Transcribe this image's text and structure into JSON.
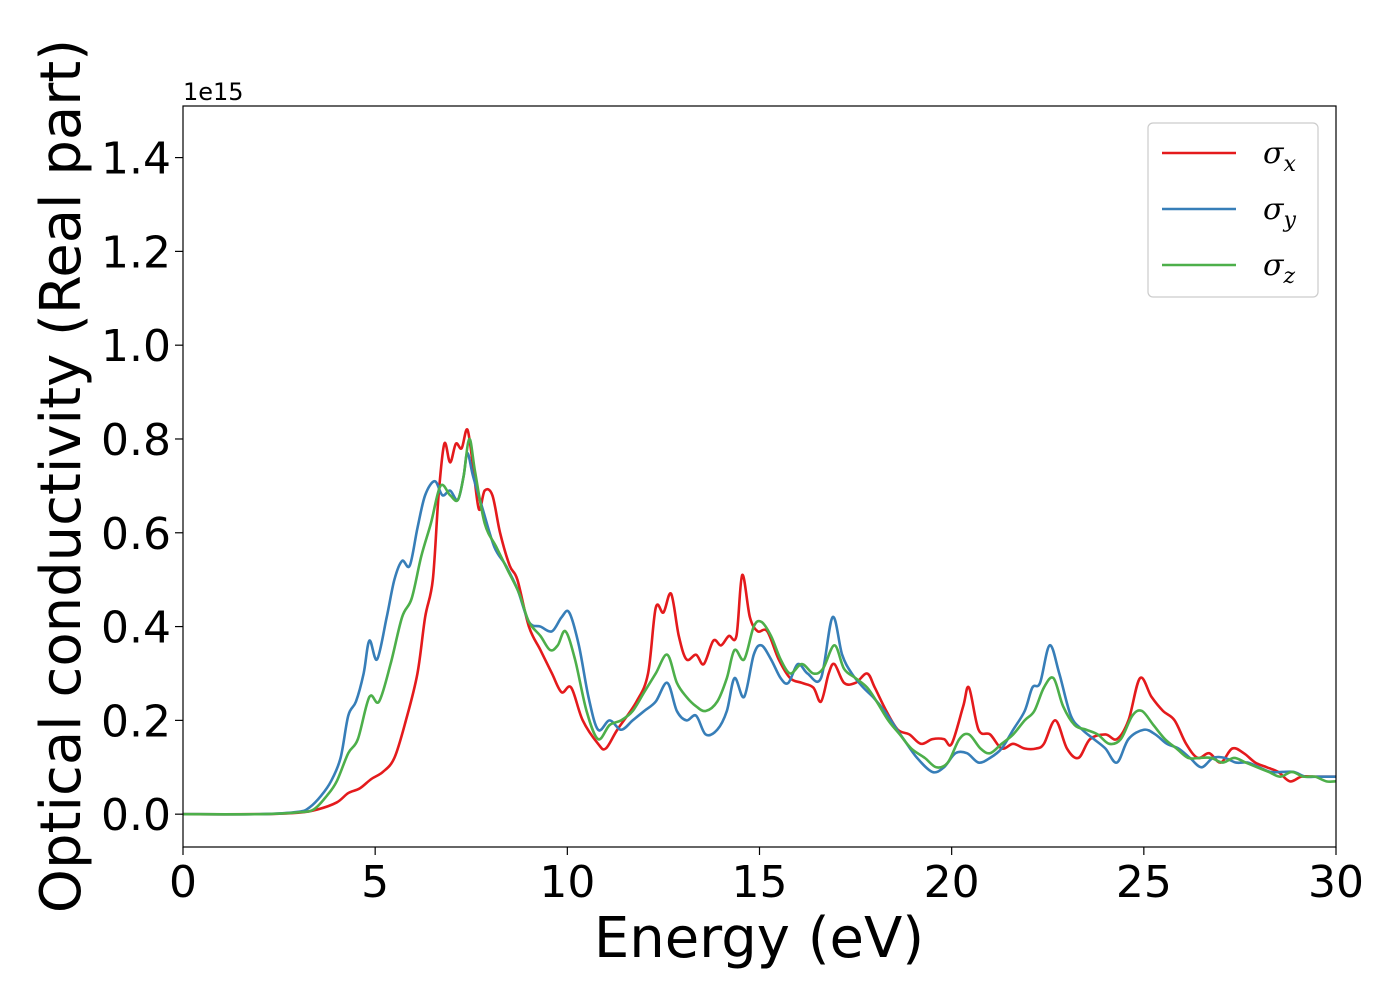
{
  "chart_data": {
    "type": "line",
    "xlabel": "Energy (eV)",
    "ylabel": "Optical conductivity (Real part)",
    "y_offset_text": "1e15",
    "xlim": [
      0,
      30
    ],
    "ylim": [
      -0.07,
      1.51
    ],
    "y_scale_factor": 1000000000000000.0,
    "x_ticks": [
      0,
      5,
      10,
      15,
      20,
      25,
      30
    ],
    "x_tick_labels": [
      "0",
      "5",
      "10",
      "15",
      "20",
      "25",
      "30"
    ],
    "y_ticks": [
      0.0,
      0.2,
      0.4,
      0.6,
      0.8,
      1.0,
      1.2,
      1.4
    ],
    "y_tick_labels": [
      "0.0",
      "0.2",
      "0.4",
      "0.6",
      "0.8",
      "1.0",
      "1.2",
      "1.4"
    ],
    "grid": false,
    "legend_position": "top-right",
    "series": [
      {
        "name": "σ_x",
        "legend_symbol": "σ",
        "legend_sub": "x",
        "color": "#e41a1c",
        "points": [
          [
            0,
            0.0
          ],
          [
            2,
            0.0
          ],
          [
            3,
            0.003
          ],
          [
            3.5,
            0.01
          ],
          [
            4,
            0.025
          ],
          [
            4.3,
            0.045
          ],
          [
            4.6,
            0.055
          ],
          [
            4.9,
            0.075
          ],
          [
            5.2,
            0.09
          ],
          [
            5.5,
            0.12
          ],
          [
            5.8,
            0.2
          ],
          [
            6.1,
            0.3
          ],
          [
            6.3,
            0.42
          ],
          [
            6.5,
            0.5
          ],
          [
            6.65,
            0.68
          ],
          [
            6.8,
            0.79
          ],
          [
            6.95,
            0.75
          ],
          [
            7.1,
            0.79
          ],
          [
            7.25,
            0.78
          ],
          [
            7.4,
            0.82
          ],
          [
            7.55,
            0.74
          ],
          [
            7.7,
            0.65
          ],
          [
            7.85,
            0.69
          ],
          [
            8.05,
            0.68
          ],
          [
            8.25,
            0.6
          ],
          [
            8.5,
            0.53
          ],
          [
            8.7,
            0.5
          ],
          [
            9.0,
            0.4
          ],
          [
            9.3,
            0.35
          ],
          [
            9.6,
            0.3
          ],
          [
            9.85,
            0.26
          ],
          [
            10.1,
            0.27
          ],
          [
            10.4,
            0.2
          ],
          [
            10.8,
            0.15
          ],
          [
            11.0,
            0.14
          ],
          [
            11.3,
            0.18
          ],
          [
            11.8,
            0.24
          ],
          [
            12.1,
            0.3
          ],
          [
            12.3,
            0.44
          ],
          [
            12.5,
            0.43
          ],
          [
            12.7,
            0.47
          ],
          [
            12.9,
            0.38
          ],
          [
            13.1,
            0.33
          ],
          [
            13.35,
            0.34
          ],
          [
            13.55,
            0.32
          ],
          [
            13.8,
            0.37
          ],
          [
            14.0,
            0.36
          ],
          [
            14.2,
            0.38
          ],
          [
            14.4,
            0.38
          ],
          [
            14.55,
            0.51
          ],
          [
            14.75,
            0.42
          ],
          [
            14.95,
            0.39
          ],
          [
            15.2,
            0.39
          ],
          [
            15.5,
            0.33
          ],
          [
            15.8,
            0.29
          ],
          [
            16.1,
            0.28
          ],
          [
            16.4,
            0.27
          ],
          [
            16.6,
            0.24
          ],
          [
            16.8,
            0.3
          ],
          [
            16.95,
            0.32
          ],
          [
            17.2,
            0.28
          ],
          [
            17.5,
            0.28
          ],
          [
            17.8,
            0.3
          ],
          [
            18.0,
            0.27
          ],
          [
            18.3,
            0.22
          ],
          [
            18.6,
            0.18
          ],
          [
            18.9,
            0.17
          ],
          [
            19.2,
            0.15
          ],
          [
            19.5,
            0.16
          ],
          [
            19.8,
            0.16
          ],
          [
            20.0,
            0.15
          ],
          [
            20.3,
            0.23
          ],
          [
            20.45,
            0.27
          ],
          [
            20.7,
            0.18
          ],
          [
            21.0,
            0.17
          ],
          [
            21.3,
            0.14
          ],
          [
            21.6,
            0.15
          ],
          [
            21.9,
            0.14
          ],
          [
            22.2,
            0.14
          ],
          [
            22.4,
            0.15
          ],
          [
            22.7,
            0.2
          ],
          [
            23.0,
            0.14
          ],
          [
            23.3,
            0.12
          ],
          [
            23.6,
            0.16
          ],
          [
            24.0,
            0.17
          ],
          [
            24.3,
            0.16
          ],
          [
            24.6,
            0.2
          ],
          [
            24.9,
            0.29
          ],
          [
            25.2,
            0.25
          ],
          [
            25.5,
            0.22
          ],
          [
            25.8,
            0.2
          ],
          [
            26.1,
            0.15
          ],
          [
            26.4,
            0.12
          ],
          [
            26.7,
            0.13
          ],
          [
            27.0,
            0.11
          ],
          [
            27.3,
            0.14
          ],
          [
            27.6,
            0.13
          ],
          [
            27.9,
            0.11
          ],
          [
            28.2,
            0.1
          ],
          [
            28.5,
            0.09
          ],
          [
            28.8,
            0.07
          ],
          [
            29.1,
            0.08
          ],
          [
            29.4,
            0.08
          ],
          [
            29.7,
            0.08
          ],
          [
            30.0,
            0.08
          ]
        ]
      },
      {
        "name": "σ_y",
        "legend_symbol": "σ",
        "legend_sub": "y",
        "color": "#377eb8",
        "points": [
          [
            0,
            0.0
          ],
          [
            2,
            0.0
          ],
          [
            3,
            0.005
          ],
          [
            3.3,
            0.015
          ],
          [
            3.6,
            0.04
          ],
          [
            3.85,
            0.07
          ],
          [
            4.1,
            0.12
          ],
          [
            4.3,
            0.21
          ],
          [
            4.5,
            0.24
          ],
          [
            4.7,
            0.3
          ],
          [
            4.85,
            0.37
          ],
          [
            5.05,
            0.33
          ],
          [
            5.3,
            0.42
          ],
          [
            5.5,
            0.5
          ],
          [
            5.7,
            0.54
          ],
          [
            5.9,
            0.53
          ],
          [
            6.1,
            0.61
          ],
          [
            6.3,
            0.68
          ],
          [
            6.55,
            0.71
          ],
          [
            6.75,
            0.68
          ],
          [
            6.95,
            0.69
          ],
          [
            7.15,
            0.67
          ],
          [
            7.3,
            0.72
          ],
          [
            7.4,
            0.77
          ],
          [
            7.55,
            0.72
          ],
          [
            7.8,
            0.65
          ],
          [
            8.1,
            0.57
          ],
          [
            8.4,
            0.53
          ],
          [
            8.7,
            0.48
          ],
          [
            9.0,
            0.41
          ],
          [
            9.3,
            0.4
          ],
          [
            9.6,
            0.39
          ],
          [
            9.85,
            0.42
          ],
          [
            10.05,
            0.43
          ],
          [
            10.3,
            0.36
          ],
          [
            10.55,
            0.25
          ],
          [
            10.8,
            0.18
          ],
          [
            11.1,
            0.2
          ],
          [
            11.4,
            0.18
          ],
          [
            11.7,
            0.2
          ],
          [
            12.0,
            0.22
          ],
          [
            12.3,
            0.24
          ],
          [
            12.6,
            0.28
          ],
          [
            12.85,
            0.22
          ],
          [
            13.1,
            0.2
          ],
          [
            13.35,
            0.21
          ],
          [
            13.6,
            0.17
          ],
          [
            13.9,
            0.18
          ],
          [
            14.15,
            0.22
          ],
          [
            14.35,
            0.29
          ],
          [
            14.6,
            0.25
          ],
          [
            14.85,
            0.34
          ],
          [
            15.05,
            0.36
          ],
          [
            15.3,
            0.33
          ],
          [
            15.55,
            0.29
          ],
          [
            15.75,
            0.28
          ],
          [
            16.0,
            0.32
          ],
          [
            16.25,
            0.3
          ],
          [
            16.6,
            0.29
          ],
          [
            16.9,
            0.42
          ],
          [
            17.15,
            0.34
          ],
          [
            17.4,
            0.3
          ],
          [
            17.7,
            0.27
          ],
          [
            17.95,
            0.25
          ],
          [
            18.25,
            0.22
          ],
          [
            18.5,
            0.19
          ],
          [
            18.75,
            0.16
          ],
          [
            19.1,
            0.12
          ],
          [
            19.5,
            0.09
          ],
          [
            19.8,
            0.1
          ],
          [
            20.1,
            0.13
          ],
          [
            20.4,
            0.13
          ],
          [
            20.7,
            0.11
          ],
          [
            21.0,
            0.12
          ],
          [
            21.3,
            0.14
          ],
          [
            21.6,
            0.18
          ],
          [
            21.9,
            0.22
          ],
          [
            22.1,
            0.27
          ],
          [
            22.3,
            0.28
          ],
          [
            22.55,
            0.36
          ],
          [
            22.8,
            0.3
          ],
          [
            23.1,
            0.21
          ],
          [
            23.4,
            0.18
          ],
          [
            23.7,
            0.16
          ],
          [
            24.0,
            0.14
          ],
          [
            24.3,
            0.11
          ],
          [
            24.6,
            0.16
          ],
          [
            25.0,
            0.18
          ],
          [
            25.3,
            0.17
          ],
          [
            25.6,
            0.15
          ],
          [
            25.9,
            0.14
          ],
          [
            26.2,
            0.12
          ],
          [
            26.5,
            0.1
          ],
          [
            26.8,
            0.12
          ],
          [
            27.1,
            0.12
          ],
          [
            27.4,
            0.11
          ],
          [
            27.7,
            0.11
          ],
          [
            28.0,
            0.1
          ],
          [
            28.3,
            0.09
          ],
          [
            28.6,
            0.09
          ],
          [
            28.9,
            0.09
          ],
          [
            29.2,
            0.08
          ],
          [
            29.5,
            0.08
          ],
          [
            29.8,
            0.08
          ],
          [
            30.0,
            0.08
          ]
        ]
      },
      {
        "name": "σ_z",
        "legend_symbol": "σ",
        "legend_sub": "z",
        "color": "#4daf4a",
        "points": [
          [
            0,
            0.0
          ],
          [
            2,
            0.0
          ],
          [
            3,
            0.004
          ],
          [
            3.4,
            0.01
          ],
          [
            3.75,
            0.04
          ],
          [
            4.0,
            0.07
          ],
          [
            4.3,
            0.13
          ],
          [
            4.55,
            0.16
          ],
          [
            4.85,
            0.25
          ],
          [
            5.1,
            0.24
          ],
          [
            5.4,
            0.32
          ],
          [
            5.7,
            0.42
          ],
          [
            5.95,
            0.46
          ],
          [
            6.2,
            0.55
          ],
          [
            6.45,
            0.62
          ],
          [
            6.7,
            0.7
          ],
          [
            6.95,
            0.68
          ],
          [
            7.15,
            0.67
          ],
          [
            7.3,
            0.72
          ],
          [
            7.45,
            0.8
          ],
          [
            7.6,
            0.73
          ],
          [
            7.85,
            0.62
          ],
          [
            8.15,
            0.57
          ],
          [
            8.45,
            0.52
          ],
          [
            8.75,
            0.47
          ],
          [
            9.0,
            0.41
          ],
          [
            9.3,
            0.38
          ],
          [
            9.55,
            0.35
          ],
          [
            9.75,
            0.36
          ],
          [
            9.95,
            0.39
          ],
          [
            10.2,
            0.33
          ],
          [
            10.5,
            0.22
          ],
          [
            10.8,
            0.16
          ],
          [
            11.1,
            0.19
          ],
          [
            11.4,
            0.2
          ],
          [
            11.7,
            0.22
          ],
          [
            12.0,
            0.26
          ],
          [
            12.3,
            0.3
          ],
          [
            12.6,
            0.34
          ],
          [
            12.85,
            0.28
          ],
          [
            13.1,
            0.25
          ],
          [
            13.35,
            0.23
          ],
          [
            13.6,
            0.22
          ],
          [
            13.9,
            0.24
          ],
          [
            14.15,
            0.29
          ],
          [
            14.35,
            0.35
          ],
          [
            14.6,
            0.33
          ],
          [
            14.85,
            0.4
          ],
          [
            15.05,
            0.41
          ],
          [
            15.3,
            0.38
          ],
          [
            15.55,
            0.33
          ],
          [
            15.8,
            0.3
          ],
          [
            16.1,
            0.32
          ],
          [
            16.4,
            0.3
          ],
          [
            16.65,
            0.31
          ],
          [
            16.95,
            0.36
          ],
          [
            17.2,
            0.31
          ],
          [
            17.5,
            0.29
          ],
          [
            17.8,
            0.27
          ],
          [
            18.05,
            0.24
          ],
          [
            18.35,
            0.2
          ],
          [
            18.65,
            0.17
          ],
          [
            18.95,
            0.14
          ],
          [
            19.3,
            0.12
          ],
          [
            19.6,
            0.1
          ],
          [
            19.9,
            0.11
          ],
          [
            20.2,
            0.16
          ],
          [
            20.45,
            0.17
          ],
          [
            20.75,
            0.14
          ],
          [
            21.0,
            0.13
          ],
          [
            21.3,
            0.15
          ],
          [
            21.6,
            0.17
          ],
          [
            21.9,
            0.2
          ],
          [
            22.15,
            0.22
          ],
          [
            22.4,
            0.27
          ],
          [
            22.65,
            0.29
          ],
          [
            22.9,
            0.23
          ],
          [
            23.2,
            0.19
          ],
          [
            23.5,
            0.18
          ],
          [
            23.8,
            0.17
          ],
          [
            24.1,
            0.15
          ],
          [
            24.4,
            0.16
          ],
          [
            24.7,
            0.21
          ],
          [
            24.95,
            0.22
          ],
          [
            25.25,
            0.19
          ],
          [
            25.55,
            0.16
          ],
          [
            25.85,
            0.14
          ],
          [
            26.15,
            0.12
          ],
          [
            26.45,
            0.12
          ],
          [
            26.75,
            0.12
          ],
          [
            27.05,
            0.11
          ],
          [
            27.35,
            0.12
          ],
          [
            27.65,
            0.11
          ],
          [
            27.95,
            0.1
          ],
          [
            28.25,
            0.09
          ],
          [
            28.55,
            0.08
          ],
          [
            28.85,
            0.09
          ],
          [
            29.15,
            0.08
          ],
          [
            29.45,
            0.08
          ],
          [
            29.75,
            0.07
          ],
          [
            30.0,
            0.07
          ]
        ]
      }
    ]
  }
}
